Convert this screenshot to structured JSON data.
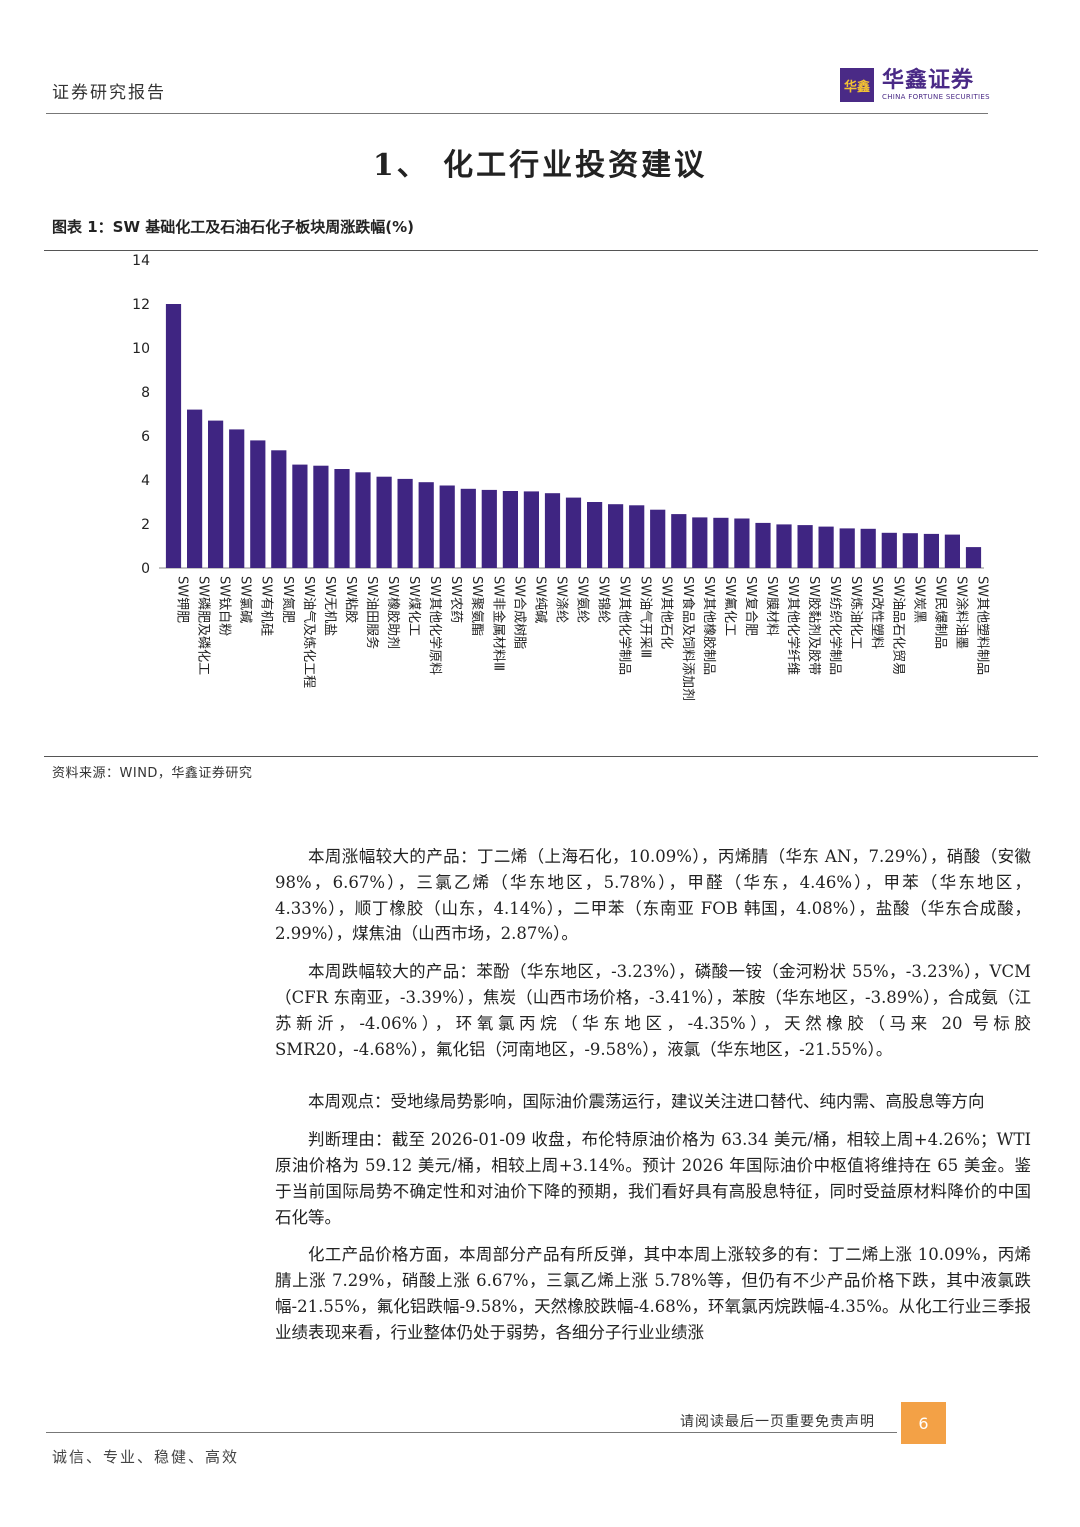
{
  "header": {
    "left_label": "证券研究报告",
    "logo_mark": "华鑫",
    "logo_cn": "华鑫证券",
    "logo_en": "CHINA FORTUNE SECURITIES"
  },
  "section_title": "1、 化工行业投资建议",
  "figure_title": "图表 1：SW 基础化工及石油石化子板块周涨跌幅(%)",
  "chart_data": {
    "type": "bar",
    "title": "",
    "xlabel": "",
    "ylabel": "",
    "ylim": [
      0,
      14
    ],
    "yticks": [
      0,
      2,
      4,
      6,
      8,
      10,
      12,
      14
    ],
    "grid": false,
    "bar_color": "#3f2582",
    "categories": [
      "SW钾肥",
      "SW磷肥及磷化工",
      "SW钛白粉",
      "SW氯碱",
      "SW有机硅",
      "SW氮肥",
      "SW油气及炼化工程",
      "SW无机盐",
      "SW粘胶",
      "SW油田服务",
      "SW橡胶助剂",
      "SW煤化工",
      "SW其他化学原料",
      "SW农药",
      "SW聚氨酯",
      "SW非金属材料Ⅲ",
      "SW合成树脂",
      "SW纯碱",
      "SW涤纶",
      "SW氨纶",
      "SW锦纶",
      "SW其他化学制品",
      "SW油气开采Ⅲ",
      "SW其他石化",
      "SW食品及饲料添加剂",
      "SW其他橡胶制品",
      "SW氟化工",
      "SW复合肥",
      "SW膜材料",
      "SW其他化学纤维",
      "SW胶黏剂及胶带",
      "SW纺织化学制品",
      "SW炼油化工",
      "SW改性塑料",
      "SW油品石化贸易",
      "SW炭黑",
      "SW民爆制品",
      "SW涂料油墨",
      "SW其他塑料制品"
    ],
    "values": [
      12.0,
      7.2,
      6.7,
      6.3,
      5.8,
      5.35,
      4.7,
      4.65,
      4.5,
      4.35,
      4.15,
      4.05,
      3.9,
      3.75,
      3.6,
      3.55,
      3.5,
      3.48,
      3.4,
      3.2,
      3.0,
      2.9,
      2.85,
      2.65,
      2.45,
      2.3,
      2.28,
      2.25,
      2.05,
      1.98,
      1.95,
      1.88,
      1.8,
      1.78,
      1.6,
      1.58,
      1.55,
      1.52,
      0.95
    ]
  },
  "source": "资料来源：WIND，华鑫证券研究",
  "body": {
    "p1": "本周涨幅较大的产品：丁二烯（上海石化，10.09%），丙烯腈（华东 AN，7.29%），硝酸（安徽 98%，6.67%），三氯乙烯（华东地区，5.78%），甲醛（华东，4.46%），甲苯（华东地区，4.33%），顺丁橡胶（山东，4.14%），二甲苯（东南亚 FOB 韩国，4.08%），盐酸（华东合成酸，2.99%），煤焦油（山西市场，2.87%）。",
    "p2": "本周跌幅较大的产品：苯酚（华东地区，-3.23%），磷酸一铵（金河粉状 55%，-3.23%），VCM（CFR 东南亚，-3.39%），焦炭（山西市场价格，-3.41%），苯胺（华东地区，-3.89%），合成氨（江苏新沂，-4.06%），环氧氯丙烷（华东地区，-4.35%），天然橡胶（马来 20 号标胶 SMR20，-4.68%），氟化铝（河南地区，-9.58%），液氯（华东地区，-21.55%）。",
    "p3": "本周观点：受地缘局势影响，国际油价震荡运行，建议关注进口替代、纯内需、高股息等方向",
    "p4": "判断理由：截至 2026-01-09 收盘，布伦特原油价格为 63.34 美元/桶，相较上周+4.26%；WTI 原油价格为 59.12 美元/桶，相较上周+3.14%。预计 2026 年国际油价中枢值将维持在 65 美金。鉴于当前国际局势不确定性和对油价下降的预期，我们看好具有高股息特征，同时受益原材料降价的中国石化等。",
    "p5": "化工产品价格方面，本周部分产品有所反弹，其中本周上涨较多的有：丁二烯上涨 10.09%，丙烯腈上涨 7.29%，硝酸上涨 6.67%，三氯乙烯上涨 5.78%等，但仍有不少产品价格下跌，其中液氯跌幅-21.55%，氟化铝跌幅-9.58%，天然橡胶跌幅-4.68%，环氧氯丙烷跌幅-4.35%。从化工行业三季报业绩表现来看，行业整体仍处于弱势，各细分子行业业绩涨"
  },
  "footer": {
    "disclaimer_note": "请阅读最后一页重要免责声明",
    "page_number": "6",
    "motto": "诚信、专业、稳健、高效"
  }
}
